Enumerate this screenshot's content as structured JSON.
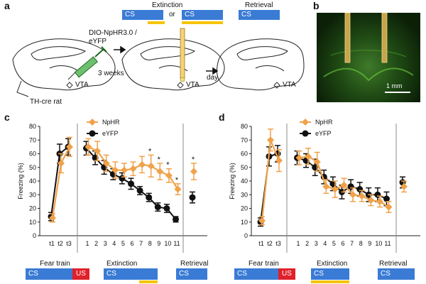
{
  "panel_a": {
    "letter": "a",
    "extinction_title": "Extinction",
    "retrieval_title": "Retrieval",
    "cs_label": "CS",
    "or_label": "or",
    "virus_label_line1": "DIO-NpHR3.0 /",
    "virus_label_line2": "eYFP",
    "weeks_label": "3 weeks",
    "day_label": "day",
    "vta_label": "VTA",
    "rat_label": "TH-cre rat"
  },
  "panel_b": {
    "letter": "b",
    "scale_label": "1 mm"
  },
  "chart_data": [
    {
      "panel": "c",
      "type": "line",
      "ylabel": "Freezing (%)",
      "ylim": [
        0,
        80
      ],
      "yticks": [
        "0",
        "10",
        "20",
        "30",
        "40",
        "50",
        "60",
        "70",
        "80"
      ],
      "legend": [
        "NpHR",
        "eYFP"
      ],
      "fear_ticks": [
        "t1",
        "t2",
        "t3"
      ],
      "ext_ticks": [
        "1",
        "2",
        "3",
        "4",
        "5",
        "6",
        "7",
        "8",
        "9",
        "10",
        "11"
      ],
      "series": [
        {
          "name": "NpHR",
          "color": "#f0a24a",
          "fear": [
            13,
            53,
            65
          ],
          "fear_err": [
            3,
            7,
            7
          ],
          "extinction": [
            65,
            62,
            53,
            48,
            48,
            49,
            52,
            51,
            47,
            44,
            34
          ],
          "extinction_err": [
            6,
            7,
            6,
            6,
            5,
            5,
            6,
            8,
            6,
            5,
            4
          ],
          "retrieval": 47,
          "retrieval_err": 6
        },
        {
          "name": "eYFP",
          "color": "#111111",
          "fear": [
            14,
            60,
            65
          ],
          "fear_err": [
            3,
            7,
            6
          ],
          "extinction": [
            64,
            57,
            50,
            45,
            42,
            38,
            33,
            28,
            21,
            20,
            12
          ],
          "extinction_err": [
            5,
            5,
            5,
            4,
            4,
            4,
            3,
            3,
            3,
            3,
            2
          ],
          "retrieval": 28,
          "retrieval_err": 4
        }
      ],
      "significance": {
        "extinction_days": [
          8,
          9,
          10,
          11
        ],
        "retrieval": true,
        "marker": "*"
      },
      "protocol": {
        "fear_label": "Fear train",
        "extinction_label": "Extinction",
        "retrieval_label": "Retrieval",
        "cs": "CS",
        "us": "US"
      }
    },
    {
      "panel": "d",
      "type": "line",
      "ylabel": "Freezing (%)",
      "ylim": [
        0,
        80
      ],
      "yticks": [
        "0",
        "10",
        "20",
        "30",
        "40",
        "50",
        "60",
        "70",
        "80"
      ],
      "legend": [
        "NpHR",
        "eYFP"
      ],
      "fear_ticks": [
        "t1",
        "t2",
        "t3"
      ],
      "ext_ticks": [
        "1",
        "2",
        "3",
        "4",
        "5",
        "6",
        "7",
        "8",
        "9",
        "10",
        "11"
      ],
      "series": [
        {
          "name": "NpHR",
          "color": "#f0a24a",
          "fear": [
            11,
            70,
            55
          ],
          "fear_err": [
            3,
            8,
            8
          ],
          "extinction": [
            57,
            58,
            54,
            36,
            34,
            37,
            30,
            29,
            26,
            25,
            21
          ],
          "extinction_err": [
            5,
            6,
            7,
            5,
            6,
            5,
            5,
            4,
            4,
            4,
            4
          ],
          "retrieval": 36,
          "retrieval_err": 4
        },
        {
          "name": "eYFP",
          "color": "#111111",
          "fear": [
            10,
            58,
            60
          ],
          "fear_err": [
            3,
            7,
            6
          ],
          "extinction": [
            57,
            55,
            50,
            43,
            38,
            32,
            36,
            34,
            30,
            30,
            27
          ],
          "extinction_err": [
            5,
            5,
            6,
            5,
            5,
            5,
            5,
            5,
            5,
            5,
            5
          ],
          "retrieval": 39,
          "retrieval_err": 4
        }
      ],
      "significance": {
        "extinction_days": [],
        "retrieval": false,
        "marker": "*"
      },
      "protocol": {
        "fear_label": "Fear train",
        "extinction_label": "Extinction",
        "retrieval_label": "Retrieval",
        "cs": "CS",
        "us": "US"
      }
    }
  ]
}
